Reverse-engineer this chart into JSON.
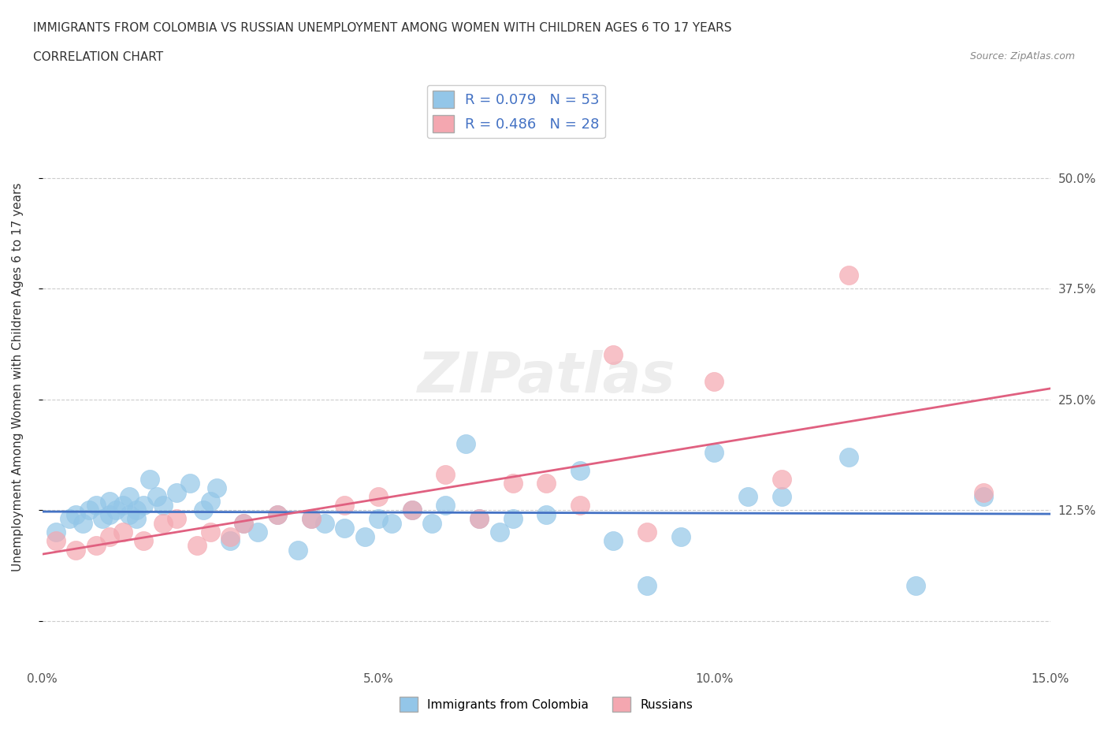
{
  "title_line1": "IMMIGRANTS FROM COLOMBIA VS RUSSIAN UNEMPLOYMENT AMONG WOMEN WITH CHILDREN AGES 6 TO 17 YEARS",
  "title_line2": "CORRELATION CHART",
  "source": "Source: ZipAtlas.com",
  "xlabel": "",
  "ylabel": "Unemployment Among Women with Children Ages 6 to 17 years",
  "xlim": [
    0.0,
    0.15
  ],
  "ylim": [
    -0.05,
    0.6
  ],
  "yticks": [
    0.0,
    0.125,
    0.25,
    0.375,
    0.5
  ],
  "ytick_labels": [
    "",
    "12.5%",
    "25.0%",
    "37.5%",
    "50.0%"
  ],
  "xticks": [
    0.0,
    0.05,
    0.1,
    0.15
  ],
  "xtick_labels": [
    "0.0%",
    "5.0%",
    "10.0%",
    "15.0%"
  ],
  "colombia_color": "#93C6E8",
  "russia_color": "#F4A7B0",
  "colombia_line_color": "#4472C4",
  "russia_line_color": "#E06080",
  "background_color": "#FFFFFF",
  "grid_color": "#CCCCCC",
  "R_colombia": 0.079,
  "N_colombia": 53,
  "R_russia": 0.486,
  "N_russia": 28,
  "legend_label_colombia": "Immigrants from Colombia",
  "legend_label_russia": "Russians",
  "watermark": "ZIPatlas",
  "colombia_x": [
    0.002,
    0.004,
    0.005,
    0.006,
    0.007,
    0.008,
    0.009,
    0.01,
    0.01,
    0.011,
    0.012,
    0.013,
    0.013,
    0.014,
    0.014,
    0.015,
    0.016,
    0.017,
    0.018,
    0.02,
    0.022,
    0.024,
    0.025,
    0.026,
    0.028,
    0.03,
    0.032,
    0.035,
    0.038,
    0.04,
    0.042,
    0.045,
    0.048,
    0.05,
    0.052,
    0.055,
    0.058,
    0.06,
    0.063,
    0.065,
    0.068,
    0.07,
    0.075,
    0.08,
    0.085,
    0.09,
    0.095,
    0.1,
    0.105,
    0.11,
    0.12,
    0.13,
    0.14
  ],
  "colombia_y": [
    0.1,
    0.115,
    0.12,
    0.11,
    0.125,
    0.13,
    0.115,
    0.12,
    0.135,
    0.125,
    0.13,
    0.12,
    0.14,
    0.125,
    0.115,
    0.13,
    0.16,
    0.14,
    0.13,
    0.145,
    0.155,
    0.125,
    0.135,
    0.15,
    0.09,
    0.11,
    0.1,
    0.12,
    0.08,
    0.115,
    0.11,
    0.105,
    0.095,
    0.115,
    0.11,
    0.125,
    0.11,
    0.13,
    0.2,
    0.115,
    0.1,
    0.115,
    0.12,
    0.17,
    0.09,
    0.04,
    0.095,
    0.19,
    0.14,
    0.14,
    0.185,
    0.04,
    0.14
  ],
  "russia_x": [
    0.002,
    0.005,
    0.008,
    0.01,
    0.012,
    0.015,
    0.018,
    0.02,
    0.023,
    0.025,
    0.028,
    0.03,
    0.035,
    0.04,
    0.045,
    0.05,
    0.055,
    0.06,
    0.065,
    0.07,
    0.075,
    0.08,
    0.085,
    0.09,
    0.1,
    0.11,
    0.12,
    0.14
  ],
  "russia_y": [
    0.09,
    0.08,
    0.085,
    0.095,
    0.1,
    0.09,
    0.11,
    0.115,
    0.085,
    0.1,
    0.095,
    0.11,
    0.12,
    0.115,
    0.13,
    0.14,
    0.125,
    0.165,
    0.115,
    0.155,
    0.155,
    0.13,
    0.3,
    0.1,
    0.27,
    0.16,
    0.39,
    0.145
  ]
}
